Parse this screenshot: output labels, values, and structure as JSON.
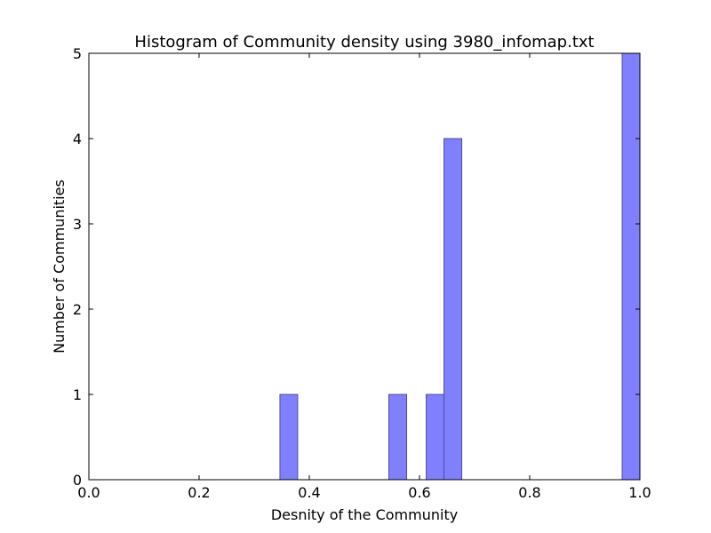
{
  "chart_data": {
    "type": "bar",
    "title": "Histogram of Community density using 3980_infomap.txt",
    "xlabel": "Desnity of the Community",
    "ylabel": "Number of Communities",
    "xlim": [
      0.0,
      1.0
    ],
    "ylim": [
      0,
      5
    ],
    "x_ticks": [
      "0.0",
      "0.2",
      "0.4",
      "0.6",
      "0.8",
      "1.0"
    ],
    "y_ticks": [
      "0",
      "1",
      "2",
      "3",
      "4",
      "5"
    ],
    "grid": false,
    "bar_color": "#8080ff",
    "bar_edge_color": "#4d4d99",
    "bins": [
      {
        "x0": 0.3467,
        "x1": 0.3789,
        "count": 1
      },
      {
        "x0": 0.5444,
        "x1": 0.5767,
        "count": 1
      },
      {
        "x0": 0.6122,
        "x1": 0.6444,
        "count": 1
      },
      {
        "x0": 0.6444,
        "x1": 0.6767,
        "count": 4
      },
      {
        "x0": 0.9678,
        "x1": 1.0,
        "count": 5
      }
    ]
  }
}
